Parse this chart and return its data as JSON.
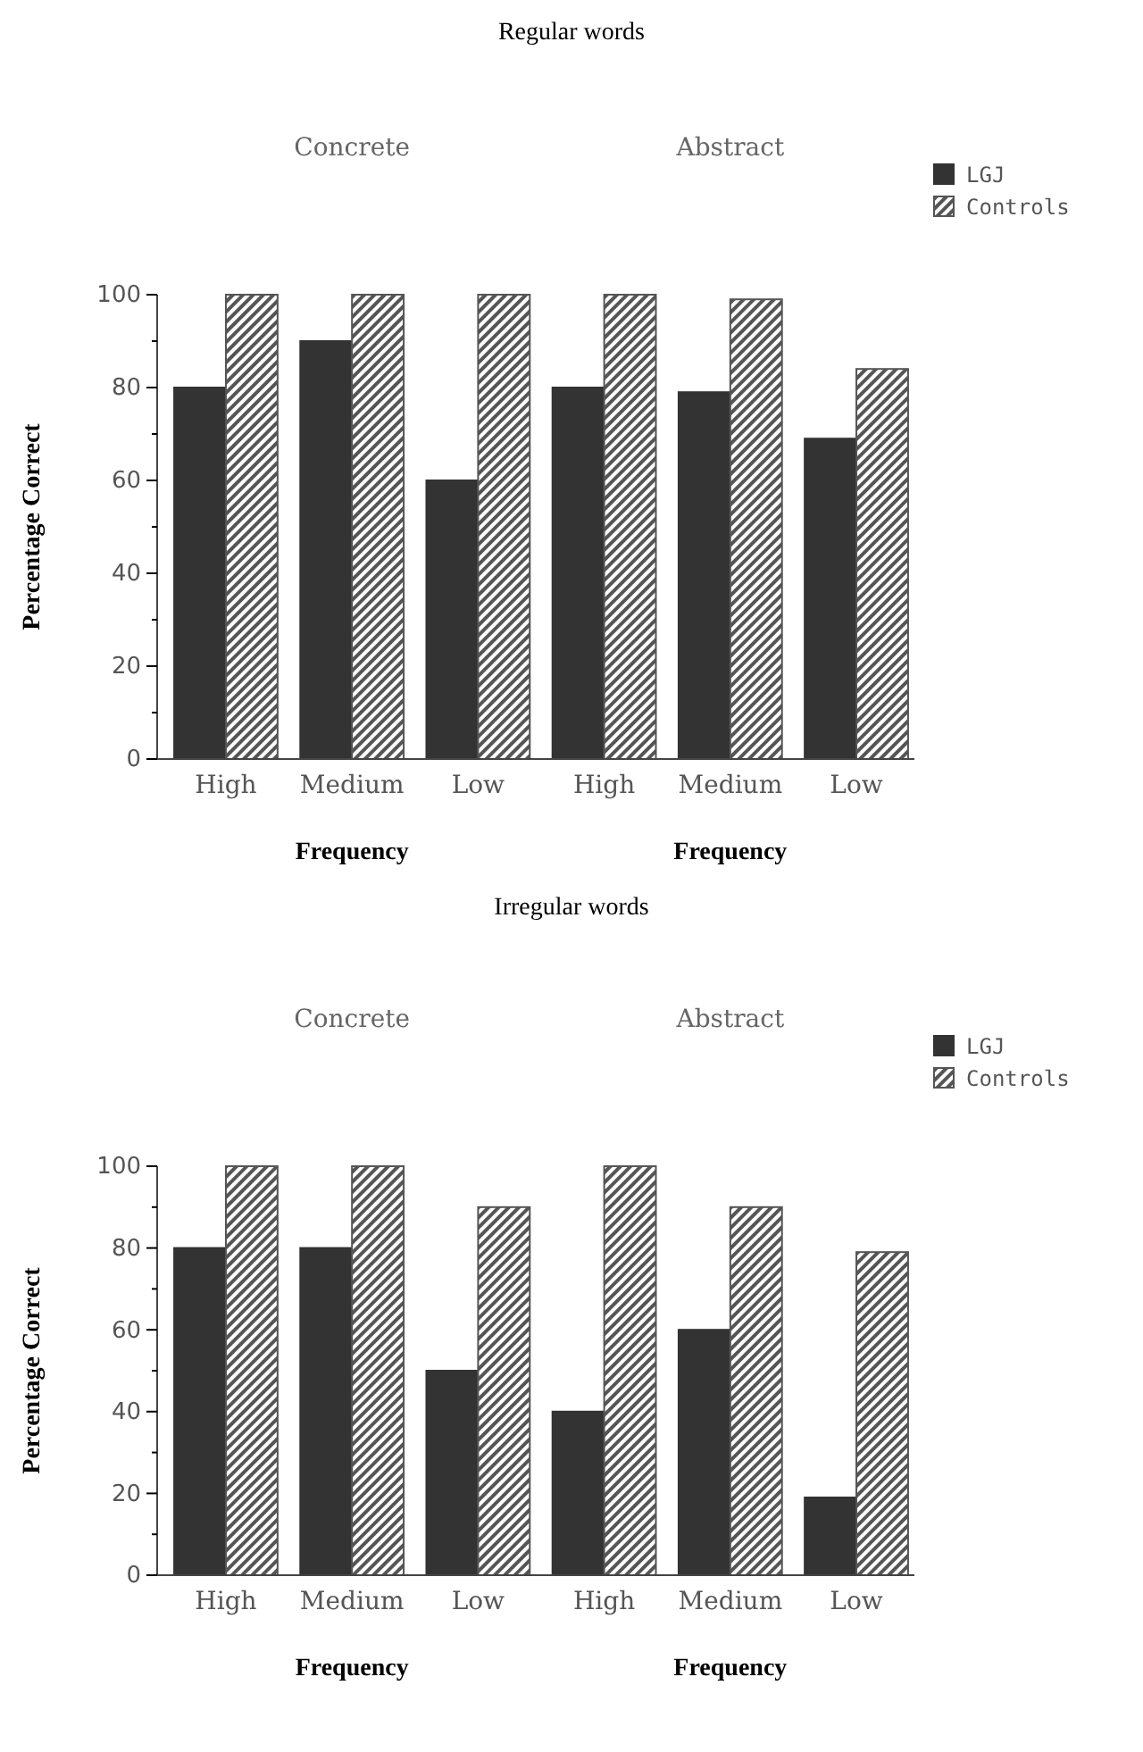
{
  "chart_data": [
    {
      "type": "bar",
      "title": "Regular words",
      "ylabel": "Percentage Correct",
      "categories": [
        "High",
        "Medium",
        "Low",
        "High",
        "Medium",
        "Low"
      ],
      "series": [
        {
          "name": "LGJ",
          "color": "#333333",
          "values": [
            80,
            90,
            60,
            80,
            79,
            69
          ]
        },
        {
          "name": "Controls",
          "color": "#555555",
          "values": [
            100,
            100,
            100,
            100,
            99,
            84
          ]
        }
      ],
      "annotations": [
        "Concrete",
        "Abstract",
        "Frequency",
        "Frequency"
      ],
      "ylim": [
        0,
        100
      ],
      "yticks": [
        0,
        {
          "value": 10,
          "label": null
        },
        20,
        {
          "value": 30,
          "label": null
        },
        40,
        {
          "value": 50,
          "label": null
        },
        60,
        {
          "value": 70,
          "label": null
        },
        80,
        {
          "value": 90,
          "label": null
        },
        100
      ],
      "legend": "top right"
    },
    {
      "type": "bar",
      "title": "Irregular words",
      "ylabel": "Percentage Correct",
      "categories": [
        "High",
        "Medium",
        "Low",
        "High",
        "Medium",
        "Low"
      ],
      "series": [
        {
          "name": "LGJ",
          "color": "#333333",
          "values": [
            80,
            80,
            50,
            40,
            60,
            19
          ]
        },
        {
          "name": "Controls",
          "color": "#555555",
          "values": [
            100,
            100,
            90,
            100,
            90,
            79
          ]
        }
      ],
      "annotations": [
        "Concrete",
        "Abstract",
        "Frequency",
        "Frequency"
      ],
      "ylim": [
        0,
        100
      ],
      "yticks": [
        0,
        {
          "value": 10,
          "label": null
        },
        20,
        {
          "value": 30,
          "label": null
        },
        40,
        {
          "value": 50,
          "label": null
        },
        60,
        {
          "value": 70,
          "label": null
        },
        80,
        {
          "value": 90,
          "label": null
        },
        100
      ],
      "legend": "top right"
    }
  ]
}
